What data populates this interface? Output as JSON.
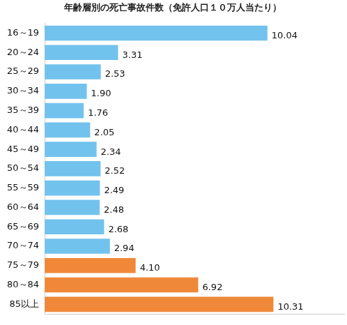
{
  "chart_data": {
    "type": "bar",
    "title": "年齢層別の死亡事故件数（免許人口１０万人当たり）",
    "orientation": "horizontal",
    "categories": [
      "16～19",
      "20～24",
      "25～29",
      "30～34",
      "35～39",
      "40～44",
      "45～49",
      "50～54",
      "55～59",
      "60～64",
      "65～69",
      "70～74",
      "75～79",
      "80～84",
      "85以上"
    ],
    "values": [
      10.04,
      3.31,
      2.53,
      1.9,
      1.76,
      2.05,
      2.34,
      2.52,
      2.49,
      2.48,
      2.68,
      2.94,
      4.1,
      6.92,
      10.31
    ],
    "value_labels": [
      "10.04",
      "3.31",
      "2.53",
      "1.90",
      "1.76",
      "2.05",
      "2.34",
      "2.52",
      "2.49",
      "2.48",
      "2.68",
      "2.94",
      "4.10",
      "6.92",
      "10.31"
    ],
    "colors": [
      "#72c2ee",
      "#72c2ee",
      "#72c2ee",
      "#72c2ee",
      "#72c2ee",
      "#72c2ee",
      "#72c2ee",
      "#72c2ee",
      "#72c2ee",
      "#72c2ee",
      "#72c2ee",
      "#72c2ee",
      "#f0883a",
      "#f0883a",
      "#f0883a"
    ],
    "xlim": [
      0,
      13.5
    ],
    "data_labels": true,
    "tick_labels": "y",
    "grid": false
  }
}
